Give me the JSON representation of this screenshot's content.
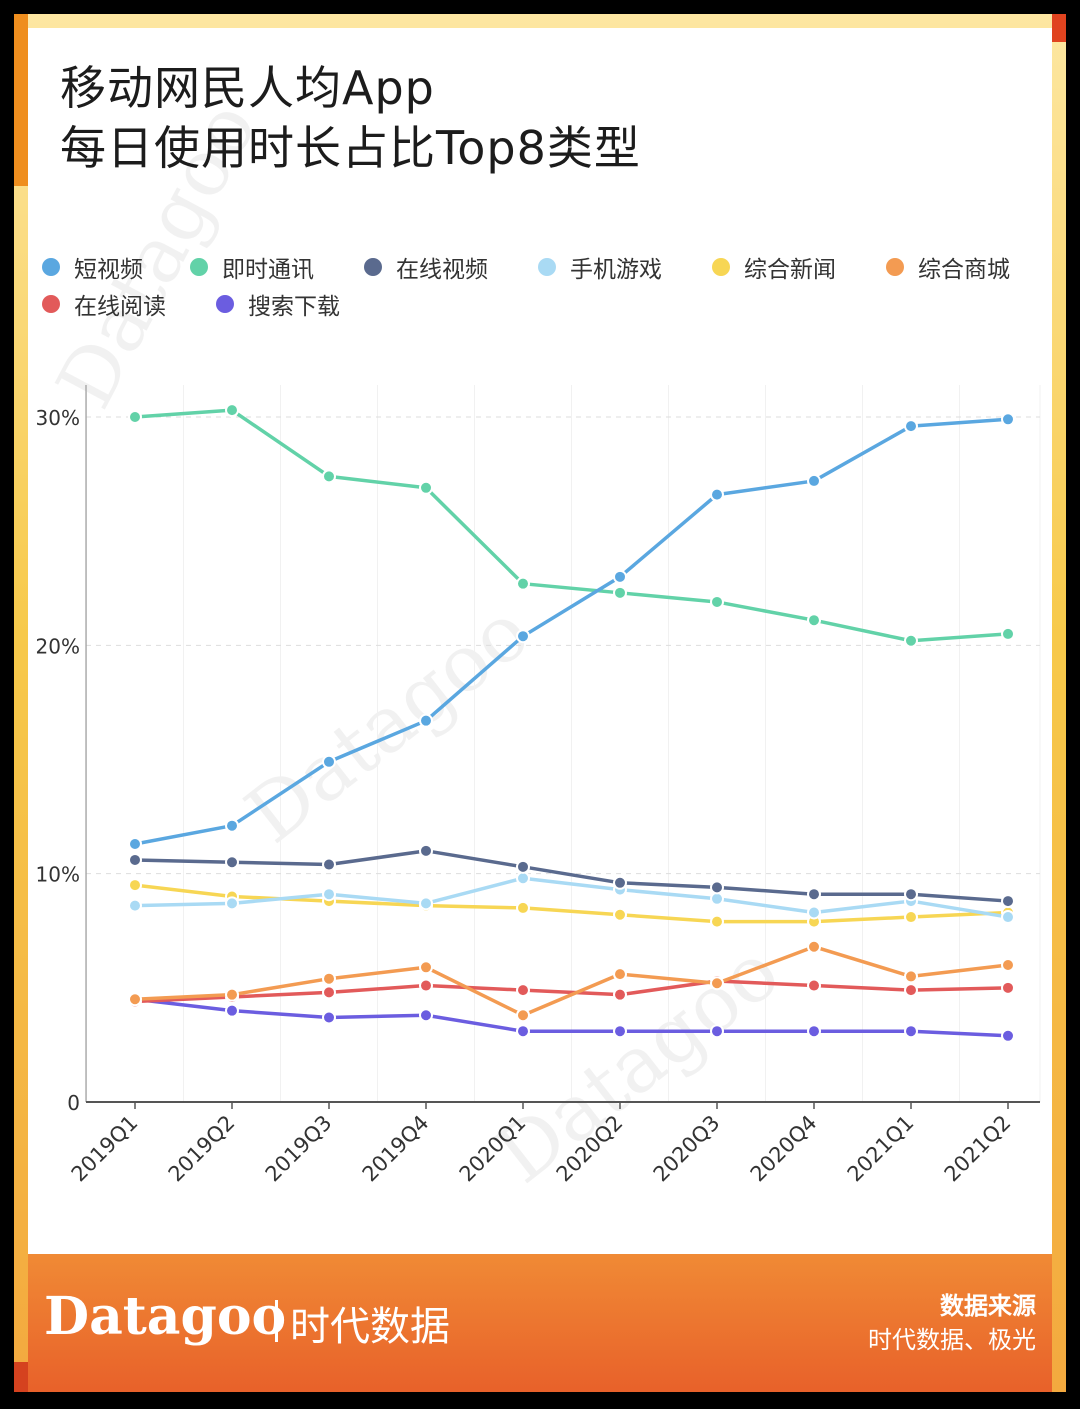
{
  "colors": {
    "short_video": "#5aa7e0",
    "im": "#62d2a8",
    "online_video": "#5a6a8e",
    "mobile_game": "#a9daf4",
    "news": "#f7d654",
    "mall": "#f39b52",
    "reading": "#e25a5a",
    "search": "#6b5de0"
  },
  "title": {
    "line1": "移动网民人均App",
    "line2": "每日使用时长占比Top8类型"
  },
  "chart_data": {
    "type": "line",
    "title": "移动网民人均App 每日使用时长占比Top8类型",
    "xlabel": "",
    "ylabel": "",
    "ylim": [
      0,
      30
    ],
    "yticks": [
      0,
      10,
      20,
      30
    ],
    "ytick_labels": [
      "0",
      "10%",
      "20%",
      "30%"
    ],
    "grid": true,
    "legend_position": "top",
    "categories": [
      "2019Q1",
      "2019Q2",
      "2019Q3",
      "2019Q4",
      "2020Q1",
      "2020Q2",
      "2020Q3",
      "2020Q4",
      "2021Q1",
      "2021Q2"
    ],
    "series": [
      {
        "name": "短视频",
        "color_key": "short_video",
        "values": [
          11.3,
          12.1,
          14.9,
          16.7,
          20.4,
          23.0,
          26.6,
          27.2,
          29.6,
          29.9
        ]
      },
      {
        "name": "即时通讯",
        "color_key": "im",
        "values": [
          30.0,
          30.3,
          27.4,
          26.9,
          22.7,
          22.3,
          21.9,
          21.1,
          20.2,
          20.5
        ]
      },
      {
        "name": "在线视频",
        "color_key": "online_video",
        "values": [
          10.6,
          10.5,
          10.4,
          11.0,
          10.3,
          9.6,
          9.4,
          9.1,
          9.1,
          8.8
        ]
      },
      {
        "name": "手机游戏",
        "color_key": "mobile_game",
        "values": [
          8.6,
          8.7,
          9.1,
          8.7,
          9.8,
          9.3,
          8.9,
          8.3,
          8.8,
          8.1
        ]
      },
      {
        "name": "综合新闻",
        "color_key": "news",
        "values": [
          9.5,
          9.0,
          8.8,
          8.6,
          8.5,
          8.2,
          7.9,
          7.9,
          8.1,
          8.3
        ]
      },
      {
        "name": "综合商城",
        "color_key": "mall",
        "values": [
          4.5,
          4.7,
          5.4,
          5.9,
          3.8,
          5.6,
          5.2,
          6.8,
          5.5,
          6.0
        ]
      },
      {
        "name": "在线阅读",
        "color_key": "reading",
        "values": [
          4.4,
          4.6,
          4.8,
          5.1,
          4.9,
          4.7,
          5.3,
          5.1,
          4.9,
          5.0
        ]
      },
      {
        "name": "搜索下载",
        "color_key": "search",
        "values": [
          4.5,
          4.0,
          3.7,
          3.8,
          3.1,
          3.1,
          3.1,
          3.1,
          3.1,
          2.9
        ]
      }
    ]
  },
  "footer": {
    "brand": "Datagoo",
    "brand_cn": "时代数据",
    "source_label": "数据来源",
    "source_value": "时代数据、极光"
  }
}
